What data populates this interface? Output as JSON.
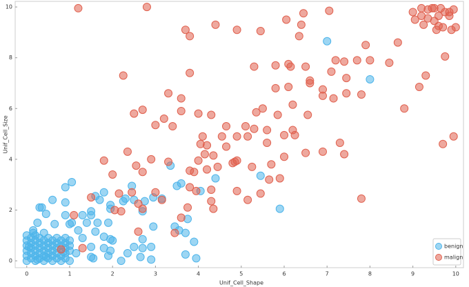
{
  "chart_data": {
    "type": "scatter",
    "x_label": "Unif_Cell_Shape",
    "y_label": "Unif_Cell_Size",
    "xlim": [
      -0.27,
      10.18
    ],
    "ylim": [
      -0.27,
      10.22
    ],
    "xticks": [
      0,
      1,
      2,
      3,
      4,
      5,
      6,
      7,
      8,
      9,
      10
    ],
    "yticks": [
      0,
      2,
      4,
      6,
      8,
      10
    ],
    "legend": "lower right",
    "series": [
      {
        "name": "benign",
        "color": "#4db4ea",
        "x": [
          0,
          0,
          0,
          0,
          0,
          0,
          0.1,
          0.1,
          0.1,
          0.1,
          0.1,
          0.2,
          0.2,
          0.2,
          0.2,
          0.2,
          0.2,
          0.3,
          0.3,
          0.3,
          0.3,
          0.3,
          0.4,
          0.4,
          0.4,
          0.4,
          0.4,
          0.5,
          0.5,
          0.5,
          0.5,
          0.5,
          0.6,
          0.6,
          0.6,
          0.6,
          0.6,
          0.7,
          0.7,
          0.7,
          0.7,
          0.7,
          0.8,
          0.8,
          0.8,
          0.8,
          0.9,
          0.9,
          0.9,
          0.9,
          0.9,
          1.0,
          1.0,
          1.0,
          1.0,
          0.15,
          0.05,
          0.45,
          0.85,
          0.25,
          0.9,
          1.05,
          0.3,
          0.35,
          0.6,
          0.9,
          0.45,
          0.25,
          0.15,
          0.4,
          0.65,
          1.0,
          0.9,
          1.05,
          1.3,
          1.5,
          1.7,
          1.8,
          1.6,
          1.5,
          1.95,
          1.95,
          1.65,
          1.9,
          1.4,
          1.2,
          1.6,
          1.8,
          1.95,
          2.0,
          1.3,
          1.5,
          1.8,
          1.95,
          1.5,
          1.55,
          1.9,
          2.2,
          2.35,
          2.5,
          2.7,
          2.9,
          2.65,
          2.9,
          2.7,
          2.95,
          3.15,
          2.95,
          2.75,
          2.7,
          2.45,
          2.5,
          2.25,
          2.3,
          3.35,
          3.5,
          3.6,
          3.45,
          3.55,
          3.75,
          3.7,
          3.9,
          3.7,
          3.95,
          4.05,
          4.4,
          5.45,
          5.9,
          7.0,
          8.0,
          1.15
        ],
        "y": [
          0,
          0.2,
          0.4,
          0.6,
          0.8,
          1,
          0.1,
          0.3,
          0.5,
          0.7,
          0.9,
          0,
          0.2,
          0.4,
          0.6,
          0.8,
          1.0,
          0.1,
          0.3,
          0.5,
          0.7,
          0.9,
          0,
          0.2,
          0.4,
          0.6,
          0.8,
          0.1,
          0.3,
          0.5,
          0.7,
          0.9,
          0,
          0.2,
          0.4,
          0.6,
          0.8,
          0.1,
          0.3,
          0.5,
          0.7,
          0.9,
          0,
          0.2,
          0.6,
          0.8,
          0.1,
          0.3,
          0.5,
          0.7,
          0.9,
          0,
          0.4,
          0.6,
          0.8,
          1.2,
          0.55,
          0.15,
          0.35,
          0.05,
          2.9,
          3.1,
          2.1,
          2.1,
          2.4,
          2.3,
          1.85,
          1.5,
          1.1,
          1.1,
          1.45,
          1.45,
          1.8,
          1.5,
          1.8,
          1.8,
          2.4,
          2.7,
          2.55,
          1.95,
          2.05,
          2.2,
          1.5,
          1.5,
          1.5,
          1.2,
          1.15,
          0.95,
          0.85,
          0.8,
          0.9,
          0.55,
          0.5,
          0.4,
          0.15,
          0.1,
          0.2,
          0.0,
          0.3,
          0.55,
          0.5,
          0.55,
          0.15,
          0.05,
          0.85,
          1.35,
          2.45,
          2.5,
          2.35,
          1.95,
          2.95,
          2.4,
          2.35,
          2.45,
          3.75,
          2.95,
          3.05,
          1.35,
          1.2,
          1.65,
          1.1,
          0.75,
          0.25,
          0.1,
          2.75,
          3.25,
          3.35,
          2.05,
          8.65,
          7.15,
          0.3
        ]
      },
      {
        "name": "malign",
        "color": "#e0604e",
        "x": [
          1.2,
          2.8,
          3.7,
          3.8,
          4.4,
          4.9,
          5.45,
          6.05,
          6.45,
          7.05,
          6.4,
          6.35,
          7.9,
          8.65,
          2.25,
          3.8,
          5.3,
          5.8,
          6.1,
          6.15,
          6.5,
          7.2,
          7.4,
          7.7,
          8.0,
          8.45,
          9.75,
          9.3,
          6.1,
          6.6,
          6.9,
          7.1,
          7.45,
          7.45,
          7.8,
          9.15,
          5.8,
          6.6,
          3.3,
          3.6,
          3.6,
          2.7,
          2.5,
          3.2,
          3.4,
          3.0,
          4.0,
          4.3,
          5.35,
          5.5,
          5.85,
          6.2,
          6.55,
          7.15,
          6.9,
          8.8,
          5.1,
          4.65,
          5.3,
          5.6,
          4.9,
          4.55,
          4.1,
          4.05,
          4.2,
          4.65,
          5.15,
          5.6,
          6.2,
          6.25,
          6.0,
          6.5,
          6.9,
          7.3,
          7.4,
          9.7,
          9.95,
          6.0,
          2.35,
          1.8,
          2.9,
          2.55,
          3.3,
          4.0,
          4.15,
          4.35,
          4.8,
          4.85,
          4.9,
          5.25,
          5.7,
          4.45,
          3.8,
          3.9,
          4.2,
          2.0,
          2.7,
          5.65,
          5.9,
          3.8,
          3.95,
          4.3,
          4.9,
          5.45,
          5.15,
          7.8,
          2.15,
          2.45,
          3.0,
          3.15,
          2.6,
          2.7,
          4.3,
          4.35,
          3.75,
          3.6,
          2.05,
          2.2,
          1.5,
          2.6,
          3.45,
          1.1,
          0.8,
          1.3,
          9.0,
          9.2,
          9.35,
          9.45,
          9.5,
          9.65,
          9.85,
          9.95,
          9.75,
          9.85,
          9.2,
          9.35,
          9.5,
          9.6,
          9.7,
          9.55,
          9.25,
          9.05,
          9.9,
          10,
          9.6
        ],
        "y": [
          9.95,
          10,
          9.1,
          8.85,
          9.3,
          9.1,
          9.05,
          9.5,
          9.75,
          9.85,
          9.3,
          8.85,
          8.5,
          8.6,
          7.3,
          7.4,
          7.65,
          7.7,
          7.75,
          7.65,
          7.65,
          7.9,
          7.85,
          7.9,
          7.9,
          7.8,
          8.05,
          7.3,
          6.85,
          7.1,
          6.75,
          7.45,
          7.2,
          6.6,
          6.55,
          6.85,
          6.8,
          7.0,
          6.6,
          6.4,
          5.9,
          5.95,
          5.8,
          5.6,
          5.3,
          5.35,
          5.8,
          5.75,
          5.85,
          6.0,
          5.75,
          6.15,
          5.75,
          6.4,
          6.5,
          6.0,
          5.3,
          5.3,
          5.2,
          5.15,
          4.9,
          4.9,
          4.9,
          4.6,
          4.55,
          4.5,
          4.9,
          4.65,
          5.15,
          4.95,
          4.95,
          4.25,
          4.3,
          4.65,
          4.2,
          4.6,
          4.9,
          4.1,
          4.3,
          3.95,
          4.0,
          3.75,
          3.9,
          3.95,
          4.2,
          4.15,
          3.85,
          3.9,
          3.95,
          3.7,
          3.8,
          3.7,
          3.55,
          3.5,
          3.6,
          3.4,
          3.5,
          3.2,
          3.25,
          2.9,
          2.75,
          2.8,
          2.75,
          2.65,
          2.4,
          2.45,
          2.65,
          2.7,
          2.7,
          2.4,
          2.25,
          2.05,
          2.35,
          2.05,
          2.1,
          1.7,
          2.0,
          1.95,
          2.5,
          1.15,
          1.1,
          1.8,
          0.45,
          0.5,
          9.8,
          9.95,
          9.9,
          9.95,
          9.95,
          9.95,
          9.65,
          9.9,
          9.8,
          9.8,
          9.65,
          9.55,
          9.45,
          9.25,
          9.2,
          9.1,
          9.3,
          9.5,
          9.1,
          9.2,
          9.65
        ]
      }
    ]
  }
}
